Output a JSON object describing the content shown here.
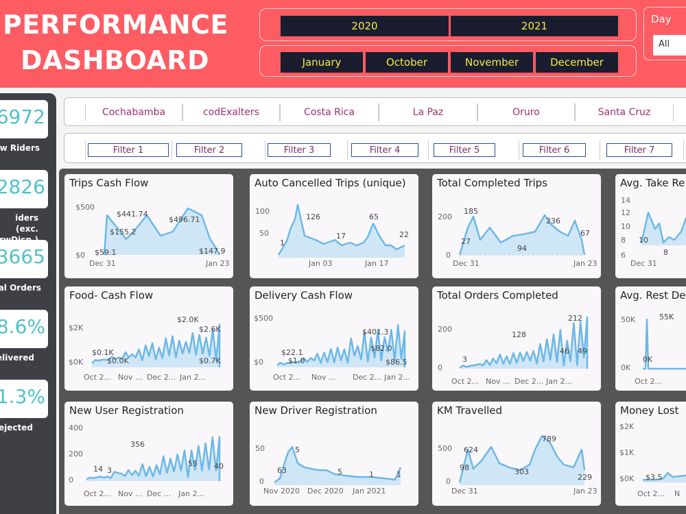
{
  "header": {
    "title_line1": "PERFORMANCE",
    "title_line2": "DASHBOARD",
    "years": [
      "2020",
      "2021"
    ],
    "months": [
      "January",
      "October",
      "November",
      "December"
    ],
    "day_label": "Day",
    "day_value": "All",
    "colors": {
      "banner": "#fd5c63",
      "chip_bg": "#1a1d2e",
      "chip_text": "#f3ec4c"
    }
  },
  "kpis": [
    {
      "value": "6972",
      "label": "w Riders"
    },
    {
      "value": "2826",
      "label": "iders (exc. rwDisp.)"
    },
    {
      "value": "3665",
      "label": "al Orders"
    },
    {
      "value": "8.6%",
      "label": "elivered"
    },
    {
      "value": "1.3%",
      "label": "ejected"
    }
  ],
  "cities": [
    "Cochabamba",
    "codExalters",
    "Costa Rica",
    "La Paz",
    "Oruro",
    "Santa Cruz"
  ],
  "filters": [
    "Filter 1",
    "Filter 2",
    "Filter 3",
    "Filter 4",
    "Filter 5",
    "Filter 6",
    "Filter 7"
  ],
  "accent_color": "#6cb8e6",
  "cards": [
    {
      "title": "Trips Cash Flow",
      "yticks": [
        "$500",
        "$0"
      ],
      "xticks": [
        "Dec 31",
        "Jan 23"
      ],
      "labels": [
        "$441.74",
        "$155.2",
        "$496.71",
        "$59.1",
        "$147.9"
      ]
    },
    {
      "title": "Auto Cancelled Trips (unique)",
      "yticks": [
        "100",
        "50"
      ],
      "xticks": [
        "Jan 03",
        "Jan 17"
      ],
      "labels": [
        "126",
        "1",
        "17",
        "65",
        "22"
      ]
    },
    {
      "title": "Total Completed Trips",
      "yticks": [
        "200",
        "0"
      ],
      "xticks": [
        "Dec 31",
        "Jan 23"
      ],
      "labels": [
        "185",
        "27",
        "94",
        "236",
        "67"
      ]
    },
    {
      "title": "Avg. Take Re",
      "yticks": [
        "14",
        "12",
        "10",
        "8",
        "6"
      ],
      "xticks": [
        "Dec 31"
      ],
      "labels": [
        "10",
        "8"
      ]
    },
    {
      "title": "Food- Cash Flow",
      "yticks": [
        "$2K",
        "$0K"
      ],
      "xticks": [
        "Oct 2...",
        "Nov ...",
        "Dec 2...",
        "Jan 2..."
      ],
      "labels": [
        "$2.0K",
        "$2.6K",
        "$0.1K",
        "$0.0K",
        "$0.7K"
      ]
    },
    {
      "title": "Delivery Cash Flow",
      "yticks": [
        "$500",
        "$0"
      ],
      "xticks": [
        "Oct 2...",
        "Nov ...",
        "Dec 2...",
        "Jan 2..."
      ],
      "labels": [
        "$401.3",
        "$22.1",
        "$1.0",
        "$82.0",
        "$86.5"
      ]
    },
    {
      "title": "Total Orders Completed",
      "yticks": [
        "200",
        "0"
      ],
      "xticks": [
        "Oct 2...",
        "Nov ...",
        "Dec 2...",
        "Jan 2..."
      ],
      "labels": [
        "212",
        "128",
        "3",
        "46",
        "49"
      ]
    },
    {
      "title": "Avg. Rest De",
      "yticks": [
        "50K",
        "0K"
      ],
      "xticks": [
        "Oct 2..."
      ],
      "labels": [
        "55K",
        "0K"
      ]
    },
    {
      "title": "New User Registration",
      "yticks": [
        "400",
        "200",
        "0"
      ],
      "xticks": [
        "Oct 2...",
        "Nov ...",
        "Dec ...",
        "Jan 2..."
      ],
      "labels": [
        "356",
        "14",
        "3",
        "55",
        "40"
      ]
    },
    {
      "title": "New Driver Registration",
      "yticks": [
        "50",
        "0"
      ],
      "xticks": [
        "Nov 2020",
        "Dec 2020",
        "Jan 2021"
      ],
      "labels": [
        "63",
        "5",
        "5",
        "1",
        "1"
      ]
    },
    {
      "title": "KM Travelled",
      "yticks": [
        "500",
        "0"
      ],
      "xticks": [
        "Dec 31",
        "Jan 23"
      ],
      "labels": [
        "624",
        "98",
        "303",
        "789",
        "229"
      ]
    },
    {
      "title": "Money Lost",
      "yticks": [
        "$2K",
        "$1K",
        "$0K"
      ],
      "xticks": [
        "Oct 2...",
        "N"
      ],
      "labels": [
        "$3.5"
      ]
    }
  ]
}
